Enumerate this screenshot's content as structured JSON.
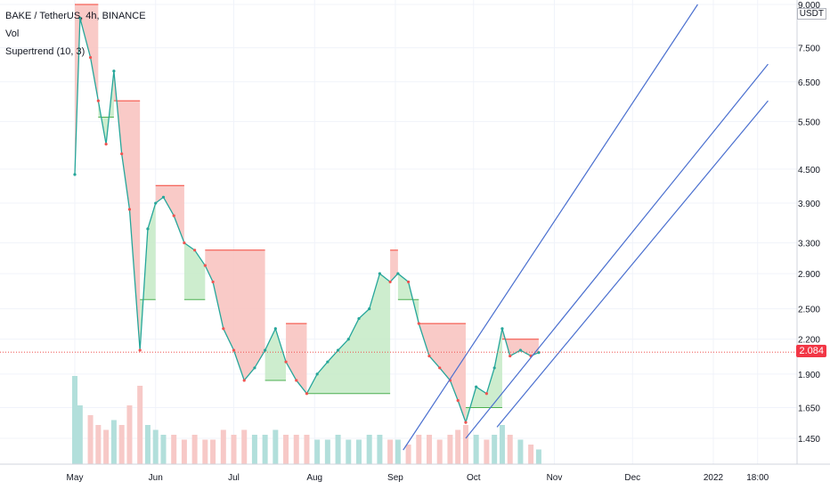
{
  "legend": {
    "symbol": "BAKE / TetherUS, 4h, BINANCE",
    "vol": "Vol",
    "supertrend": "Supertrend (10, 3)"
  },
  "price_axis": {
    "unit": "USDT",
    "ticks": [
      "9.000",
      "7.500",
      "6.500",
      "5.500",
      "4.500",
      "3.900",
      "3.300",
      "2.900",
      "2.500",
      "2.200",
      "1.900",
      "1.650",
      "1.450"
    ],
    "current_price": "2.084"
  },
  "time_axis": {
    "ticks": [
      "May",
      "Jun",
      "Jul",
      "Aug",
      "Sep",
      "Oct",
      "Nov",
      "Dec",
      "2022",
      "18:00"
    ]
  },
  "colors": {
    "up": "#26a69a",
    "down": "#ef5350",
    "supertrend_up_fill": "#c8ebc9",
    "supertrend_down_fill": "#f8c4c1",
    "trendline": "#4a6fcf",
    "price_line": "#ef5350",
    "grid": "#f0f3fa"
  },
  "chart_data": {
    "type": "line",
    "title": "BAKE / TetherUS, 4h, BINANCE",
    "y_scale": "log",
    "ylim": [
      1.35,
      9.0
    ],
    "series": [
      {
        "name": "BAKE / TetherUS",
        "x": [
          "May 1",
          "May 3",
          "May 7",
          "May 10",
          "May 13",
          "May 16",
          "May 19",
          "May 22",
          "May 26",
          "May 29",
          "Jun 1",
          "Jun 4",
          "Jun 8",
          "Jun 12",
          "Jun 16",
          "Jun 20",
          "Jun 23",
          "Jun 27",
          "Jul 1",
          "Jul 5",
          "Jul 9",
          "Jul 13",
          "Jul 17",
          "Jul 21",
          "Jul 25",
          "Jul 29",
          "Aug 2",
          "Aug 6",
          "Aug 10",
          "Aug 14",
          "Aug 18",
          "Aug 22",
          "Aug 26",
          "Aug 30",
          "Sep 2",
          "Sep 6",
          "Sep 10",
          "Sep 14",
          "Sep 18",
          "Sep 22",
          "Sep 25",
          "Sep 28",
          "Oct 2",
          "Oct 6",
          "Oct 9",
          "Oct 12",
          "Oct 15",
          "Oct 19",
          "Oct 23",
          "Oct 26"
        ],
        "values": [
          4.4,
          8.5,
          7.2,
          6.0,
          5.0,
          6.8,
          4.8,
          3.8,
          2.1,
          3.5,
          3.9,
          4.0,
          3.7,
          3.3,
          3.2,
          3.0,
          2.8,
          2.3,
          2.1,
          1.85,
          1.95,
          2.1,
          2.3,
          2.0,
          1.85,
          1.75,
          1.9,
          2.0,
          2.1,
          2.2,
          2.4,
          2.5,
          2.9,
          2.8,
          2.9,
          2.8,
          2.35,
          2.05,
          1.95,
          1.85,
          1.7,
          1.55,
          1.8,
          1.75,
          1.95,
          2.3,
          2.05,
          2.1,
          2.05,
          2.08
        ]
      }
    ],
    "volume": [
      0.9,
      0.6,
      0.5,
      0.4,
      0.35,
      0.45,
      0.4,
      0.6,
      0.8,
      0.4,
      0.35,
      0.3,
      0.3,
      0.25,
      0.3,
      0.25,
      0.25,
      0.35,
      0.3,
      0.35,
      0.3,
      0.3,
      0.35,
      0.3,
      0.3,
      0.3,
      0.25,
      0.25,
      0.3,
      0.25,
      0.25,
      0.3,
      0.3,
      0.25,
      0.25,
      0.2,
      0.3,
      0.3,
      0.25,
      0.3,
      0.35,
      0.4,
      0.3,
      0.25,
      0.3,
      0.4,
      0.3,
      0.25,
      0.2,
      0.15
    ],
    "supertrend": [
      {
        "from": "May 1",
        "to": "May 10",
        "direction": "down",
        "value": 9.0
      },
      {
        "from": "May 10",
        "to": "May 16",
        "direction": "up",
        "value": 5.6
      },
      {
        "from": "May 16",
        "to": "May 26",
        "direction": "down",
        "value": 6.0
      },
      {
        "from": "May 26",
        "to": "Jun 1",
        "direction": "up",
        "value": 2.6
      },
      {
        "from": "Jun 1",
        "to": "Jun 12",
        "direction": "down",
        "value": 4.2
      },
      {
        "from": "Jun 12",
        "to": "Jun 20",
        "direction": "up",
        "value": 2.6
      },
      {
        "from": "Jun 20",
        "to": "Jul 13",
        "direction": "down",
        "value": 3.2
      },
      {
        "from": "Jul 13",
        "to": "Jul 21",
        "direction": "up",
        "value": 1.85
      },
      {
        "from": "Jul 21",
        "to": "Jul 29",
        "direction": "down",
        "value": 2.35
      },
      {
        "from": "Jul 29",
        "to": "Aug 30",
        "direction": "up",
        "value": 1.75
      },
      {
        "from": "Aug 30",
        "to": "Sep 2",
        "direction": "down",
        "value": 3.2
      },
      {
        "from": "Sep 2",
        "to": "Sep 10",
        "direction": "up",
        "value": 2.6
      },
      {
        "from": "Sep 10",
        "to": "Sep 28",
        "direction": "down",
        "value": 2.35
      },
      {
        "from": "Sep 28",
        "to": "Oct 12",
        "direction": "up",
        "value": 1.65
      },
      {
        "from": "Oct 12",
        "to": "Oct 26",
        "direction": "down",
        "value": 2.2
      }
    ],
    "trendlines": [
      {
        "from": [
          "Sep 4",
          1.38
        ],
        "to": [
          "Dec 26",
          9.0
        ]
      },
      {
        "from": [
          "Sep 28",
          1.45
        ],
        "to": [
          "Jan 22",
          7.0
        ]
      },
      {
        "from": [
          "Oct 10",
          1.52
        ],
        "to": [
          "Jan 22",
          6.0
        ]
      }
    ],
    "current_price": 2.084
  }
}
